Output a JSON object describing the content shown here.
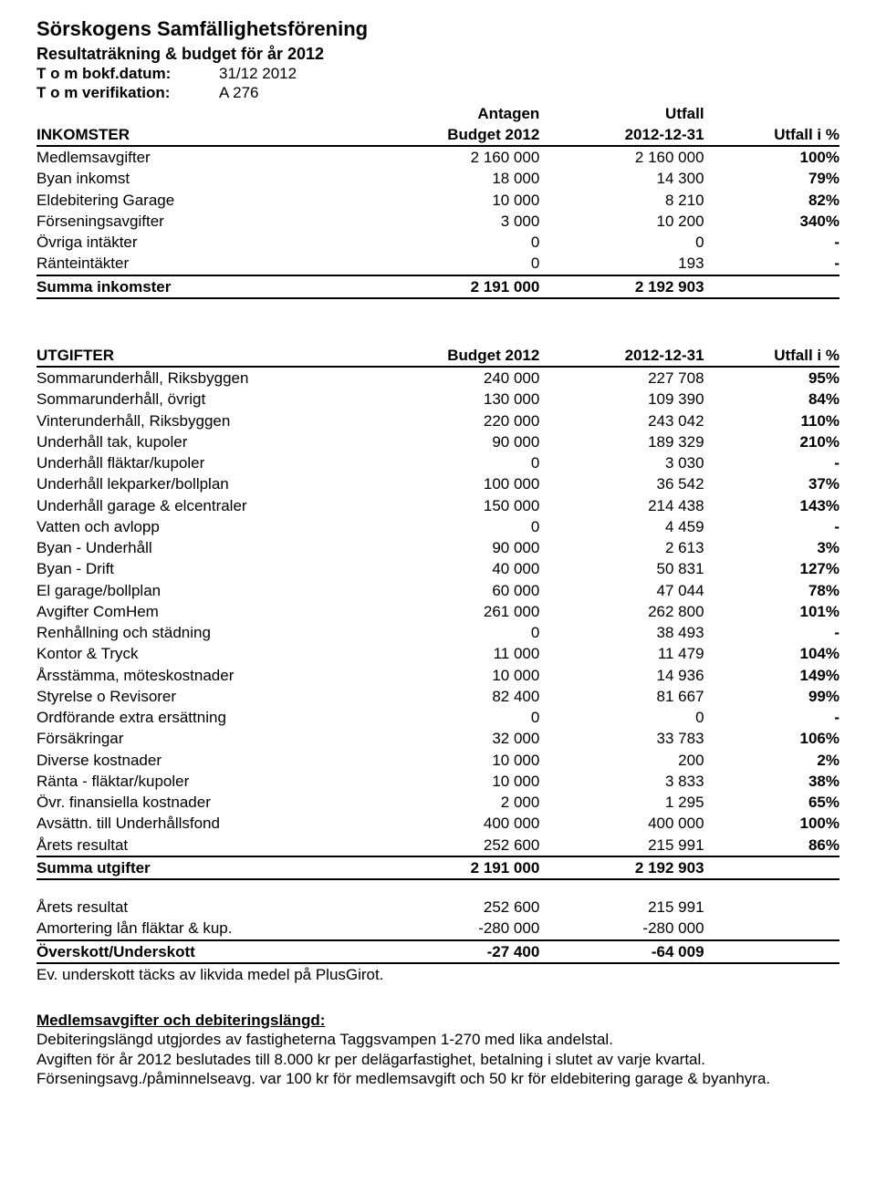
{
  "header": {
    "title": "Sörskogens Samfällighetsförening",
    "subtitle": "Resultaträkning & budget för år 2012",
    "meta1_label": "T o m bokf.datum:",
    "meta1_value": "31/12 2012",
    "meta2_label": "T o m verifikation:",
    "meta2_value": "A 276"
  },
  "inkomster": {
    "head_label": "INKOMSTER",
    "head_b_top": "Antagen",
    "head_u_top": "Utfall",
    "head_b": "Budget 2012",
    "head_u": "2012-12-31",
    "head_p": "Utfall i %",
    "rows": [
      {
        "label": "Medlemsavgifter",
        "b": "2 160 000",
        "u": "2 160 000",
        "p": "100%"
      },
      {
        "label": "Byan inkomst",
        "b": "18 000",
        "u": "14 300",
        "p": "79%"
      },
      {
        "label": "Eldebitering Garage",
        "b": "10 000",
        "u": "8 210",
        "p": "82%"
      },
      {
        "label": "Förseningsavgifter",
        "b": "3 000",
        "u": "10 200",
        "p": "340%"
      },
      {
        "label": "Övriga intäkter",
        "b": "0",
        "u": "0",
        "p": "-"
      },
      {
        "label": "Ränteintäkter",
        "b": "0",
        "u": "193",
        "p": "-"
      }
    ],
    "sum_label": "Summa inkomster",
    "sum_b": "2 191 000",
    "sum_u": "2 192 903",
    "sum_p": ""
  },
  "utgifter": {
    "head_label": "UTGIFTER",
    "head_b": "Budget 2012",
    "head_u": "2012-12-31",
    "head_p": "Utfall i %",
    "rows": [
      {
        "label": "Sommarunderhåll, Riksbyggen",
        "b": "240 000",
        "u": "227 708",
        "p": "95%"
      },
      {
        "label": "Sommarunderhåll, övrigt",
        "b": "130 000",
        "u": "109 390",
        "p": "84%"
      },
      {
        "label": "Vinterunderhåll, Riksbyggen",
        "b": "220 000",
        "u": "243 042",
        "p": "110%"
      },
      {
        "label": "Underhåll tak, kupoler",
        "b": "90 000",
        "u": "189 329",
        "p": "210%"
      },
      {
        "label": "Underhåll fläktar/kupoler",
        "b": "0",
        "u": "3 030",
        "p": "-"
      },
      {
        "label": "Underhåll lekparker/bollplan",
        "b": "100 000",
        "u": "36 542",
        "p": "37%"
      },
      {
        "label": "Underhåll garage & elcentraler",
        "b": "150 000",
        "u": "214 438",
        "p": "143%"
      },
      {
        "label": "Vatten och avlopp",
        "b": "0",
        "u": "4 459",
        "p": "-"
      },
      {
        "label": "Byan - Underhåll",
        "b": "90 000",
        "u": "2 613",
        "p": "3%"
      },
      {
        "label": "Byan - Drift",
        "b": "40 000",
        "u": "50 831",
        "p": "127%"
      },
      {
        "label": "El garage/bollplan",
        "b": "60 000",
        "u": "47 044",
        "p": "78%"
      },
      {
        "label": "Avgifter ComHem",
        "b": "261 000",
        "u": "262 800",
        "p": "101%"
      },
      {
        "label": "Renhållning och städning",
        "b": "0",
        "u": "38 493",
        "p": "-"
      },
      {
        "label": "Kontor & Tryck",
        "b": "11 000",
        "u": "11 479",
        "p": "104%"
      },
      {
        "label": "Årsstämma, möteskostnader",
        "b": "10 000",
        "u": "14 936",
        "p": "149%"
      },
      {
        "label": "Styrelse o Revisorer",
        "b": "82 400",
        "u": "81 667",
        "p": "99%"
      },
      {
        "label": "Ordförande extra ersättning",
        "b": "0",
        "u": "0",
        "p": "-"
      },
      {
        "label": "Försäkringar",
        "b": "32 000",
        "u": "33 783",
        "p": "106%"
      },
      {
        "label": "Diverse kostnader",
        "b": "10 000",
        "u": "200",
        "p": "2%"
      },
      {
        "label": "Ränta - fläktar/kupoler",
        "b": "10 000",
        "u": "3 833",
        "p": "38%"
      },
      {
        "label": "Övr. finansiella kostnader",
        "b": "2 000",
        "u": "1 295",
        "p": "65%"
      },
      {
        "label": "Avsättn. till Underhållsfond",
        "b": "400 000",
        "u": "400 000",
        "p": "100%"
      },
      {
        "label": "Årets resultat",
        "b": "252 600",
        "u": "215 991",
        "p": "86%"
      }
    ],
    "sum_label": "Summa utgifter",
    "sum_b": "2 191 000",
    "sum_u": "2 192 903",
    "sum_p": ""
  },
  "resultat": {
    "rows": [
      {
        "label": "Årets resultat",
        "b": "252 600",
        "u": "215 991",
        "p": ""
      },
      {
        "label": "Amortering lån fläktar & kup.",
        "b": "-280 000",
        "u": "-280 000",
        "p": ""
      }
    ],
    "sum_label": "Överskott/Underskott",
    "sum_b": "-27 400",
    "sum_u": "-64 009",
    "sum_p": "",
    "note": "Ev. underskott täcks av likvida medel på PlusGirot."
  },
  "footer": {
    "heading": "Medlemsavgifter och debiteringslängd:",
    "line1": "Debiteringslängd utgjordes av fastigheterna Taggsvampen 1-270 med lika andelstal.",
    "line2": "Avgiften för år 2012 beslutades till 8.000 kr per delägarfastighet, betalning i slutet av varje kvartal.",
    "line3": "Förseningsavg./påminnelseavg. var 100 kr för medlemsavgift och 50 kr för eldebitering garage & byanhyra."
  }
}
